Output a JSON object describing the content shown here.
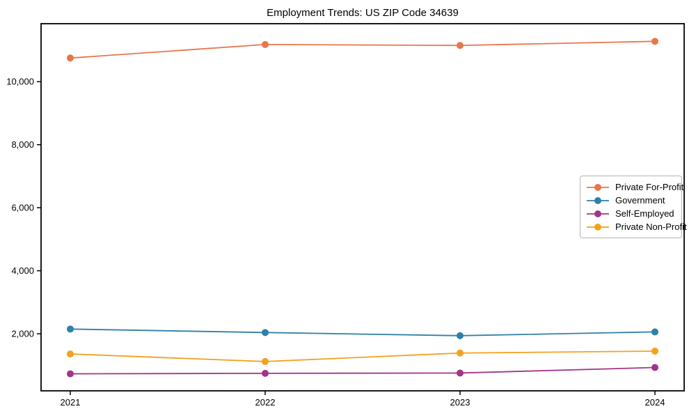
{
  "chart_data": {
    "type": "line",
    "title": "Employment Trends: US ZIP Code 34639",
    "xlabel": "",
    "ylabel": "",
    "x": [
      2021,
      2022,
      2023,
      2024
    ],
    "x_tick_labels": [
      "2021",
      "2022",
      "2023",
      "2024"
    ],
    "yticks": [
      2000,
      4000,
      6000,
      8000,
      10000
    ],
    "ytick_labels": [
      "2,000",
      "4,000",
      "6,000",
      "8,000",
      "10,000"
    ],
    "xlim": [
      2020.85,
      2024.15
    ],
    "ylim": [
      190,
      11840
    ],
    "grid": false,
    "legend_position": "center right",
    "marker": "circle",
    "series": [
      {
        "name": "Private For-Profit",
        "color": "#e8764b",
        "values": [
          10750,
          11180,
          11150,
          11280
        ]
      },
      {
        "name": "Government",
        "color": "#2e81a5",
        "values": [
          2150,
          2040,
          1940,
          2060
        ]
      },
      {
        "name": "Self-Employed",
        "color": "#a23587",
        "values": [
          730,
          745,
          755,
          930
        ]
      },
      {
        "name": "Private Non-Profit",
        "color": "#f4a11d",
        "values": [
          1360,
          1120,
          1390,
          1450
        ]
      }
    ],
    "frame_color": "#000000",
    "background_color": "#ffffff"
  }
}
